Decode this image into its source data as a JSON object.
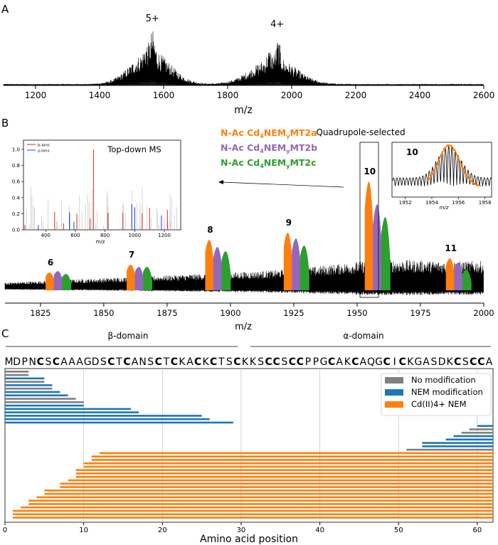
{
  "panel_labels": {
    "a": "A",
    "b": "B",
    "c": "C"
  },
  "chart_data": [
    {
      "type": "line",
      "panel": "A",
      "xlabel": "m/z",
      "xlim": [
        1100,
        2600
      ],
      "xticks": [
        1200,
        1400,
        1600,
        1800,
        2000,
        2200,
        2400,
        2600
      ],
      "annotations": [
        {
          "text": "5+",
          "x": 1565
        },
        {
          "text": "4+",
          "x": 1955
        }
      ]
    },
    {
      "type": "line",
      "panel": "B",
      "xlabel": "m/z",
      "xlim": [
        1811,
        2000
      ],
      "xticks": [
        1825,
        1850,
        1875,
        1900,
        1925,
        1950,
        1975,
        2000
      ],
      "series": [
        {
          "color": "#ff7f0e",
          "label_parts": [
            "N-Ac Cd",
            "4",
            "NEM",
            "y",
            "MT2a"
          ]
        },
        {
          "color": "#9467bd",
          "label_parts": [
            "N-Ac Cd",
            "4",
            "NEM",
            "y",
            "MT2b"
          ]
        },
        {
          "color": "#2ca02c",
          "label_parts": [
            "N-Ac Cd",
            "4",
            "NEM",
            "y",
            "MT2c"
          ]
        }
      ],
      "peak_groups": [
        {
          "label": "6",
          "x": 1829
        },
        {
          "label": "7",
          "x": 1861
        },
        {
          "label": "8",
          "x": 1892
        },
        {
          "label": "9",
          "x": 1923
        },
        {
          "label": "10",
          "x": 1955
        },
        {
          "label": "11",
          "x": 1987
        }
      ],
      "selection_label": "Quadrupole-selected",
      "zoom_inset": {
        "label": "10",
        "xlabel": "m/z",
        "xticks": [
          1952,
          1954,
          1956,
          1958
        ]
      },
      "msms_inset": {
        "title": "Top-down MS",
        "xlabel": "m/z",
        "xticks": [
          400,
          600,
          800,
          1000,
          1200
        ],
        "yticks": [
          "0.0",
          "0.2",
          "0.4",
          "0.6",
          "0.8",
          "1.0"
        ],
        "legend": [
          {
            "label": "b-ions",
            "color": "#d62728"
          },
          {
            "label": "y-ions",
            "color": "#1f3fd8"
          }
        ],
        "b_ions": [
          [
            260,
            0.06
          ],
          [
            460,
            0.22
          ],
          [
            520,
            0.08
          ],
          [
            610,
            0.2
          ],
          [
            700,
            0.14
          ],
          [
            722,
            1.0
          ],
          [
            820,
            0.21
          ],
          [
            920,
            0.21
          ],
          [
            1050,
            0.21
          ],
          [
            1100,
            0.27
          ],
          [
            1220,
            0.25
          ]
        ],
        "y_ions": [
          [
            350,
            0.06
          ],
          [
            560,
            0.22
          ],
          [
            590,
            0.1
          ],
          [
            980,
            0.32
          ],
          [
            1000,
            0.28
          ],
          [
            1180,
            0.18
          ]
        ]
      }
    },
    {
      "type": "bar",
      "panel": "C",
      "xlabel": "Amino acid position",
      "xlim": [
        0,
        62
      ],
      "xticks": [
        0,
        10,
        20,
        30,
        40,
        50,
        60
      ],
      "domains": [
        {
          "label": "β-domain",
          "start": 0,
          "end": 30
        },
        {
          "label": "α-domain",
          "start": 31,
          "end": 62
        }
      ],
      "sequence": [
        "M",
        "D",
        "P",
        "N",
        "C",
        "S",
        "C",
        "A",
        "A",
        "A",
        "G",
        "D",
        "S",
        "C",
        "T",
        "C",
        "A",
        "N",
        "S",
        "C",
        "T",
        "C",
        "K",
        "A",
        "C",
        "K",
        "C",
        "T",
        "S",
        "C",
        "K",
        "K",
        "S",
        "C",
        "C",
        "S",
        "C",
        "C",
        "P",
        "P",
        "G",
        "C",
        "A",
        "K",
        "C",
        "A",
        "Q",
        "G",
        "C",
        "I",
        "C",
        "K",
        "G",
        "A",
        "S",
        "D",
        "K",
        "C",
        "S",
        "C",
        "C",
        "A"
      ],
      "legend": [
        {
          "label": "No modification",
          "color": "#808080"
        },
        {
          "label": "NEM modification",
          "color": "#1f77b4"
        },
        {
          "label": "Cd(II)4+ NEM",
          "color": "#ff7f0e"
        }
      ],
      "fragments": [
        {
          "start": 0,
          "end": 3,
          "type": "none"
        },
        {
          "start": 0,
          "end": 3,
          "type": "none"
        },
        {
          "start": 0,
          "end": 5,
          "type": "nem"
        },
        {
          "start": 0,
          "end": 5,
          "type": "none"
        },
        {
          "start": 0,
          "end": 6,
          "type": "nem"
        },
        {
          "start": 0,
          "end": 6,
          "type": "none"
        },
        {
          "start": 0,
          "end": 7,
          "type": "nem"
        },
        {
          "start": 0,
          "end": 8,
          "type": "nem"
        },
        {
          "start": 0,
          "end": 9,
          "type": "none"
        },
        {
          "start": 0,
          "end": 10,
          "type": "none"
        },
        {
          "start": 0,
          "end": 10,
          "type": "nem"
        },
        {
          "start": 0,
          "end": 16,
          "type": "nem"
        },
        {
          "start": 0,
          "end": 17,
          "type": "nem"
        },
        {
          "start": 0,
          "end": 25,
          "type": "nem"
        },
        {
          "start": 0,
          "end": 26,
          "type": "nem"
        },
        {
          "start": 0,
          "end": 29,
          "type": "nem"
        },
        {
          "start": 60,
          "end": 62,
          "type": "nem"
        },
        {
          "start": 59,
          "end": 62,
          "type": "none"
        },
        {
          "start": 58,
          "end": 62,
          "type": "none"
        },
        {
          "start": 57,
          "end": 62,
          "type": "nem"
        },
        {
          "start": 56,
          "end": 62,
          "type": "nem"
        },
        {
          "start": 53,
          "end": 62,
          "type": "nem"
        },
        {
          "start": 53,
          "end": 62,
          "type": "nem"
        },
        {
          "start": 51,
          "end": 62,
          "type": "none"
        },
        {
          "start": 12,
          "end": 62,
          "type": "cd"
        },
        {
          "start": 11,
          "end": 62,
          "type": "cd"
        },
        {
          "start": 11,
          "end": 62,
          "type": "cd"
        },
        {
          "start": 10,
          "end": 62,
          "type": "cd"
        },
        {
          "start": 10,
          "end": 62,
          "type": "cd"
        },
        {
          "start": 9,
          "end": 62,
          "type": "cd"
        },
        {
          "start": 9,
          "end": 62,
          "type": "cd"
        },
        {
          "start": 9,
          "end": 62,
          "type": "cd"
        },
        {
          "start": 8,
          "end": 62,
          "type": "cd"
        },
        {
          "start": 7,
          "end": 62,
          "type": "cd"
        },
        {
          "start": 7,
          "end": 62,
          "type": "cd"
        },
        {
          "start": 5,
          "end": 62,
          "type": "cd"
        },
        {
          "start": 5,
          "end": 62,
          "type": "cd"
        },
        {
          "start": 4,
          "end": 62,
          "type": "cd"
        },
        {
          "start": 3,
          "end": 62,
          "type": "cd"
        },
        {
          "start": 3,
          "end": 62,
          "type": "cd"
        },
        {
          "start": 2,
          "end": 62,
          "type": "cd"
        },
        {
          "start": 1,
          "end": 62,
          "type": "cd"
        },
        {
          "start": 1,
          "end": 62,
          "type": "cd"
        },
        {
          "start": 1,
          "end": 62,
          "type": "cd"
        }
      ]
    }
  ]
}
